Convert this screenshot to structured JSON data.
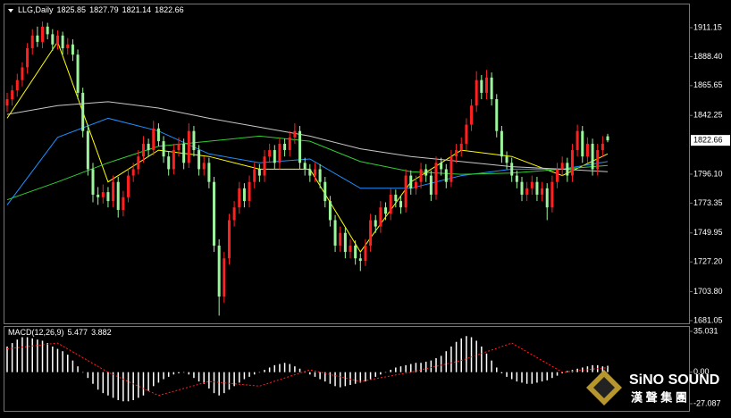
{
  "chart_data": [
    {
      "type": "candlestick",
      "title": "LLG,Daily",
      "up_color": "#ff2020",
      "down_color": "#9cf59c",
      "wick_color": "#dddddd",
      "ylim": [
        1678.95,
        1929.39
      ],
      "yticks": [
        1911.15,
        {
          "value": 1888.4,
          "label": "1888.40"
        },
        1865.65,
        1842.25,
        {
          "value": 1796.1,
          "label": "1796.10"
        },
        1773.35,
        1749.95,
        {
          "value": 1727.2,
          "label": "1727.20"
        },
        {
          "value": 1703.8,
          "label": "1703.80"
        },
        1681.05
      ],
      "candles": [
        [
          1850,
          1860,
          1845,
          1855
        ],
        [
          1855,
          1866,
          1850,
          1862
        ],
        [
          1862,
          1875,
          1857,
          1870
        ],
        [
          1870,
          1884,
          1865,
          1880
        ],
        [
          1880,
          1899,
          1875,
          1895
        ],
        [
          1895,
          1910,
          1890,
          1905
        ],
        [
          1905,
          1912,
          1896,
          1900
        ],
        [
          1900,
          1916,
          1895,
          1912
        ],
        [
          1912,
          1915,
          1902,
          1906
        ],
        [
          1906,
          1910,
          1893,
          1898
        ],
        [
          1898,
          1909,
          1894,
          1905
        ],
        [
          1905,
          1908,
          1890,
          1895
        ],
        [
          1895,
          1903,
          1890,
          1898
        ],
        [
          1898,
          1902,
          1885,
          1890
        ],
        [
          1890,
          1894,
          1855,
          1860
        ],
        [
          1860,
          1864,
          1825,
          1830
        ],
        [
          1830,
          1835,
          1795,
          1800
        ],
        [
          1800,
          1805,
          1774,
          1780
        ],
        [
          1780,
          1786,
          1772,
          1778
        ],
        [
          1778,
          1788,
          1773,
          1782
        ],
        [
          1782,
          1786,
          1770,
          1775
        ],
        [
          1775,
          1795,
          1770,
          1790
        ],
        [
          1790,
          1794,
          1762,
          1768
        ],
        [
          1768,
          1783,
          1763,
          1778
        ],
        [
          1778,
          1800,
          1774,
          1795
        ],
        [
          1795,
          1805,
          1790,
          1800
        ],
        [
          1800,
          1815,
          1796,
          1810
        ],
        [
          1810,
          1826,
          1805,
          1820
        ],
        [
          1820,
          1824,
          1810,
          1815
        ],
        [
          1815,
          1838,
          1811,
          1832
        ],
        [
          1832,
          1836,
          1818,
          1822
        ],
        [
          1822,
          1826,
          1805,
          1810
        ],
        [
          1810,
          1814,
          1795,
          1800
        ],
        [
          1800,
          1820,
          1796,
          1815
        ],
        [
          1815,
          1825,
          1810,
          1820
        ],
        [
          1820,
          1824,
          1800,
          1805
        ],
        [
          1805,
          1836,
          1801,
          1830
        ],
        [
          1830,
          1834,
          1810,
          1815
        ],
        [
          1815,
          1819,
          1795,
          1800
        ],
        [
          1800,
          1810,
          1795,
          1805
        ],
        [
          1805,
          1809,
          1785,
          1790
        ],
        [
          1790,
          1794,
          1735,
          1740
        ],
        [
          1740,
          1745,
          1685,
          1700
        ],
        [
          1700,
          1735,
          1695,
          1730
        ],
        [
          1730,
          1765,
          1725,
          1760
        ],
        [
          1760,
          1775,
          1755,
          1770
        ],
        [
          1770,
          1790,
          1765,
          1785
        ],
        [
          1785,
          1789,
          1770,
          1775
        ],
        [
          1775,
          1795,
          1770,
          1790
        ],
        [
          1790,
          1805,
          1785,
          1800
        ],
        [
          1800,
          1804,
          1790,
          1795
        ],
        [
          1795,
          1815,
          1790,
          1810
        ],
        [
          1810,
          1820,
          1805,
          1815
        ],
        [
          1815,
          1819,
          1800,
          1805
        ],
        [
          1805,
          1825,
          1800,
          1820
        ],
        [
          1820,
          1824,
          1810,
          1815
        ],
        [
          1815,
          1830,
          1810,
          1825
        ],
        [
          1825,
          1836,
          1820,
          1830
        ],
        [
          1830,
          1834,
          1800,
          1805
        ],
        [
          1805,
          1809,
          1795,
          1800
        ],
        [
          1800,
          1804,
          1790,
          1795
        ],
        [
          1795,
          1805,
          1790,
          1800
        ],
        [
          1800,
          1804,
          1785,
          1790
        ],
        [
          1790,
          1794,
          1770,
          1775
        ],
        [
          1775,
          1779,
          1755,
          1760
        ],
        [
          1760,
          1764,
          1735,
          1740
        ],
        [
          1740,
          1755,
          1735,
          1750
        ],
        [
          1750,
          1754,
          1730,
          1735
        ],
        [
          1735,
          1745,
          1730,
          1740
        ],
        [
          1740,
          1744,
          1725,
          1730
        ],
        [
          1730,
          1734,
          1720,
          1728
        ],
        [
          1728,
          1745,
          1724,
          1740
        ],
        [
          1740,
          1765,
          1735,
          1760
        ],
        [
          1760,
          1764,
          1750,
          1755
        ],
        [
          1755,
          1775,
          1750,
          1770
        ],
        [
          1770,
          1774,
          1760,
          1765
        ],
        [
          1765,
          1785,
          1760,
          1780
        ],
        [
          1780,
          1784,
          1770,
          1775
        ],
        [
          1775,
          1779,
          1765,
          1770
        ],
        [
          1770,
          1800,
          1766,
          1795
        ],
        [
          1795,
          1799,
          1780,
          1785
        ],
        [
          1785,
          1795,
          1780,
          1790
        ],
        [
          1790,
          1805,
          1785,
          1800
        ],
        [
          1800,
          1804,
          1790,
          1795
        ],
        [
          1795,
          1799,
          1775,
          1780
        ],
        [
          1780,
          1810,
          1776,
          1805
        ],
        [
          1805,
          1809,
          1795,
          1800
        ],
        [
          1800,
          1804,
          1785,
          1790
        ],
        [
          1790,
          1815,
          1786,
          1810
        ],
        [
          1810,
          1820,
          1805,
          1815
        ],
        [
          1815,
          1825,
          1810,
          1820
        ],
        [
          1820,
          1840,
          1815,
          1835
        ],
        [
          1835,
          1855,
          1830,
          1850
        ],
        [
          1850,
          1877,
          1845,
          1870
        ],
        [
          1870,
          1874,
          1855,
          1860
        ],
        [
          1860,
          1878,
          1855,
          1872
        ],
        [
          1872,
          1876,
          1850,
          1855
        ],
        [
          1855,
          1859,
          1825,
          1830
        ],
        [
          1830,
          1834,
          1805,
          1810
        ],
        [
          1810,
          1814,
          1800,
          1805
        ],
        [
          1805,
          1809,
          1790,
          1795
        ],
        [
          1795,
          1799,
          1785,
          1790
        ],
        [
          1790,
          1794,
          1775,
          1780
        ],
        [
          1780,
          1790,
          1775,
          1785
        ],
        [
          1785,
          1795,
          1780,
          1790
        ],
        [
          1790,
          1794,
          1775,
          1780
        ],
        [
          1780,
          1790,
          1775,
          1785
        ],
        [
          1785,
          1789,
          1760,
          1770
        ],
        [
          1770,
          1795,
          1766,
          1790
        ],
        [
          1790,
          1805,
          1785,
          1800
        ],
        [
          1800,
          1810,
          1795,
          1805
        ],
        [
          1805,
          1809,
          1790,
          1795
        ],
        [
          1795,
          1820,
          1790,
          1815
        ],
        [
          1815,
          1835,
          1810,
          1830
        ],
        [
          1830,
          1834,
          1805,
          1810
        ],
        [
          1810,
          1825,
          1805,
          1820
        ],
        [
          1820,
          1824,
          1795,
          1800
        ],
        [
          1800,
          1820,
          1795,
          1815
        ],
        [
          1815,
          1826,
          1810,
          1820
        ],
        [
          1825.85,
          1827.79,
          1821.14,
          1822.66
        ]
      ],
      "series": [
        {
          "color": "#ffff00",
          "x": [
            0,
            10,
            20,
            30,
            40,
            50,
            60,
            70,
            80,
            90,
            100,
            110,
            119
          ],
          "values": [
            1840,
            1900,
            1790,
            1815,
            1810,
            1800,
            1800,
            1735,
            1790,
            1815,
            1810,
            1795,
            1812
          ]
        },
        {
          "color": "#1e90ff",
          "x": [
            0,
            10,
            20,
            30,
            40,
            50,
            60,
            70,
            80,
            90,
            100,
            110,
            119
          ],
          "values": [
            1772,
            1825,
            1840,
            1830,
            1812,
            1805,
            1808,
            1785,
            1785,
            1795,
            1800,
            1800,
            1806
          ]
        },
        {
          "color": "#32cd32",
          "x": [
            0,
            10,
            20,
            30,
            40,
            50,
            60,
            70,
            80,
            90,
            100,
            110,
            119
          ],
          "values": [
            1776,
            1790,
            1805,
            1818,
            1822,
            1826,
            1822,
            1806,
            1798,
            1796,
            1797,
            1800,
            1803
          ]
        },
        {
          "color": "#c8c8c8",
          "x": [
            0,
            10,
            20,
            30,
            40,
            50,
            60,
            70,
            80,
            90,
            100,
            110,
            119
          ],
          "values": [
            1843,
            1850,
            1853,
            1848,
            1840,
            1833,
            1826,
            1816,
            1810,
            1806,
            1802,
            1800,
            1798
          ]
        }
      ]
    },
    {
      "type": "macd",
      "title": "MACD(12,26,9)",
      "bar_color": "#ffffff",
      "signal_color": "#ff2020",
      "ylim": [
        -33.22,
        39.63
      ],
      "yticks": [
        35.031,
        {
          "value": 0,
          "label": "0.00"
        },
        -27.087
      ],
      "values": [
        22,
        25,
        28,
        30,
        30,
        29,
        28,
        27,
        25,
        22,
        20,
        18,
        15,
        10,
        5,
        0,
        -5,
        -10,
        -15,
        -18,
        -20,
        -22,
        -24,
        -25,
        -25,
        -24,
        -22,
        -20,
        -16,
        -12,
        -9,
        -6,
        -4,
        -2,
        -1,
        0,
        -2,
        -5,
        -8,
        -10,
        -14,
        -18,
        -20,
        -18,
        -15,
        -12,
        -9,
        -6,
        -4,
        -2,
        0,
        2,
        4,
        6,
        7,
        8,
        7,
        5,
        3,
        0,
        -2,
        -4,
        -6,
        -8,
        -10,
        -12,
        -13,
        -12,
        -11,
        -10,
        -9,
        -8,
        -6,
        -4,
        -2,
        0,
        2,
        4,
        5,
        6,
        7,
        8,
        8,
        9,
        10,
        12,
        14,
        18,
        22,
        26,
        29,
        31,
        30,
        27,
        22,
        16,
        10,
        4,
        -1,
        -4,
        -6,
        -8,
        -9,
        -10,
        -10,
        -9,
        -8,
        -7,
        -5,
        -3,
        -1,
        1,
        2,
        3,
        4,
        5,
        6,
        6,
        5,
        5.477
      ],
      "signal": {
        "x": [
          0,
          10,
          20,
          30,
          40,
          50,
          60,
          70,
          80,
          90,
          100,
          110,
          119
        ],
        "values": [
          20,
          25,
          0,
          -20,
          -8,
          -12,
          2,
          -8,
          0,
          10,
          25,
          0,
          3.882
        ]
      }
    }
  ],
  "watermark": {
    "title": "SiNO SOUND",
    "subtitle": "漢 聲 集 團"
  }
}
